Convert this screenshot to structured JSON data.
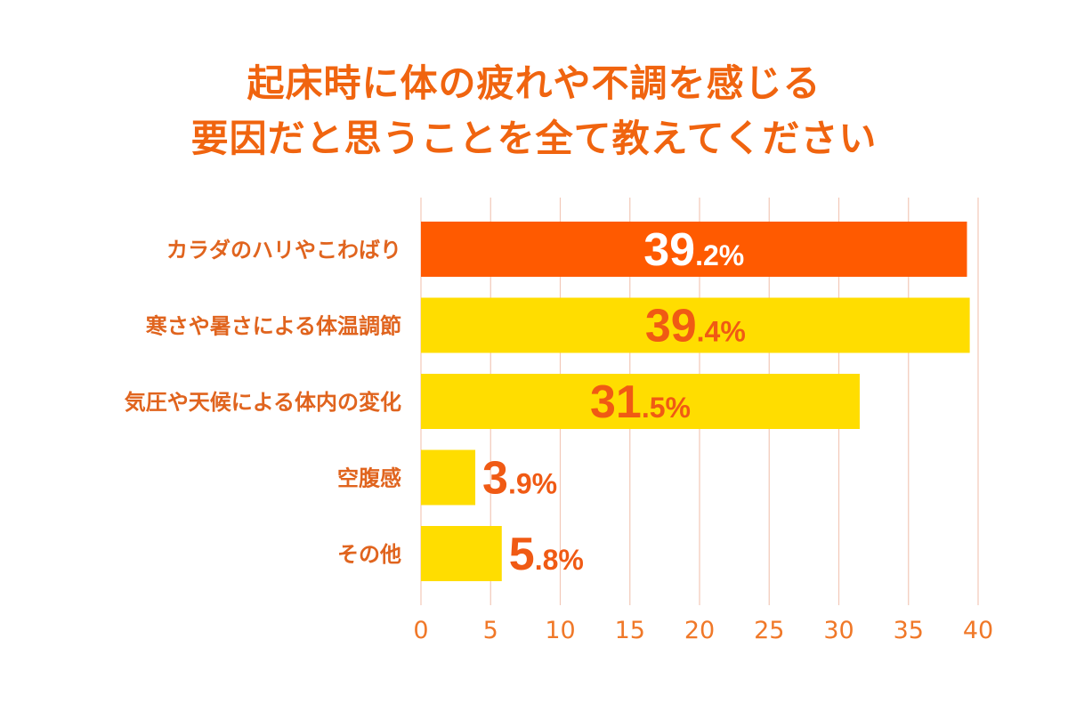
{
  "chart_data": {
    "type": "bar",
    "orientation": "horizontal",
    "title_lines": [
      "起床時に体の疲れや不調を感じる",
      "要因だと思うことを全て教えてください"
    ],
    "categories": [
      "カラダのハリやこわばり",
      "寒さや暑さによる体温調節",
      "気圧や天候による体内の変化",
      "空腹感",
      "その他"
    ],
    "values": [
      39.2,
      39.4,
      31.5,
      3.9,
      5.8
    ],
    "value_labels": [
      {
        "int": "39",
        "dec": ".2%"
      },
      {
        "int": "39",
        "dec": ".4%"
      },
      {
        "int": "31",
        "dec": ".5%"
      },
      {
        "int": "3",
        "dec": ".9%"
      },
      {
        "int": "5",
        "dec": ".8%"
      }
    ],
    "highlight_index": 0,
    "xlim": [
      0,
      40
    ],
    "x_ticks": [
      "0",
      "5",
      "10",
      "15",
      "20",
      "25",
      "30",
      "35",
      "40"
    ],
    "grid": true,
    "colors": {
      "title": "#f0640f",
      "highlight_bar": "#ff5a00",
      "bar": "#ffdd00",
      "category_label": "#e0641e",
      "tick_label": "#f07828",
      "value_label_on_highlight": "#ffffff",
      "value_label": "#f05a14",
      "grid": "#f3c8b8"
    }
  }
}
